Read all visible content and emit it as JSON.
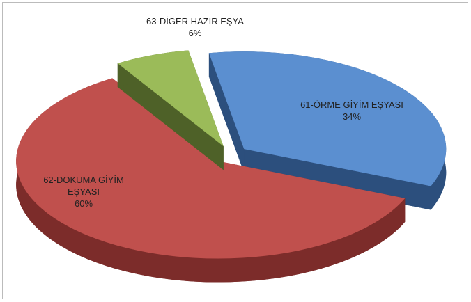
{
  "chart_data": {
    "type": "pie",
    "categories": [
      "61-ÖRME GİYİM EŞYASI",
      "62-DOKUMA GİYİM EŞYASI",
      "63-DİĞER HAZIR EŞYA"
    ],
    "values": [
      34,
      60,
      6
    ],
    "value_labels": [
      "34%",
      "60%",
      "6%"
    ],
    "colors": [
      "#5b8fd0",
      "#c0504d",
      "#9bbb59"
    ]
  }
}
